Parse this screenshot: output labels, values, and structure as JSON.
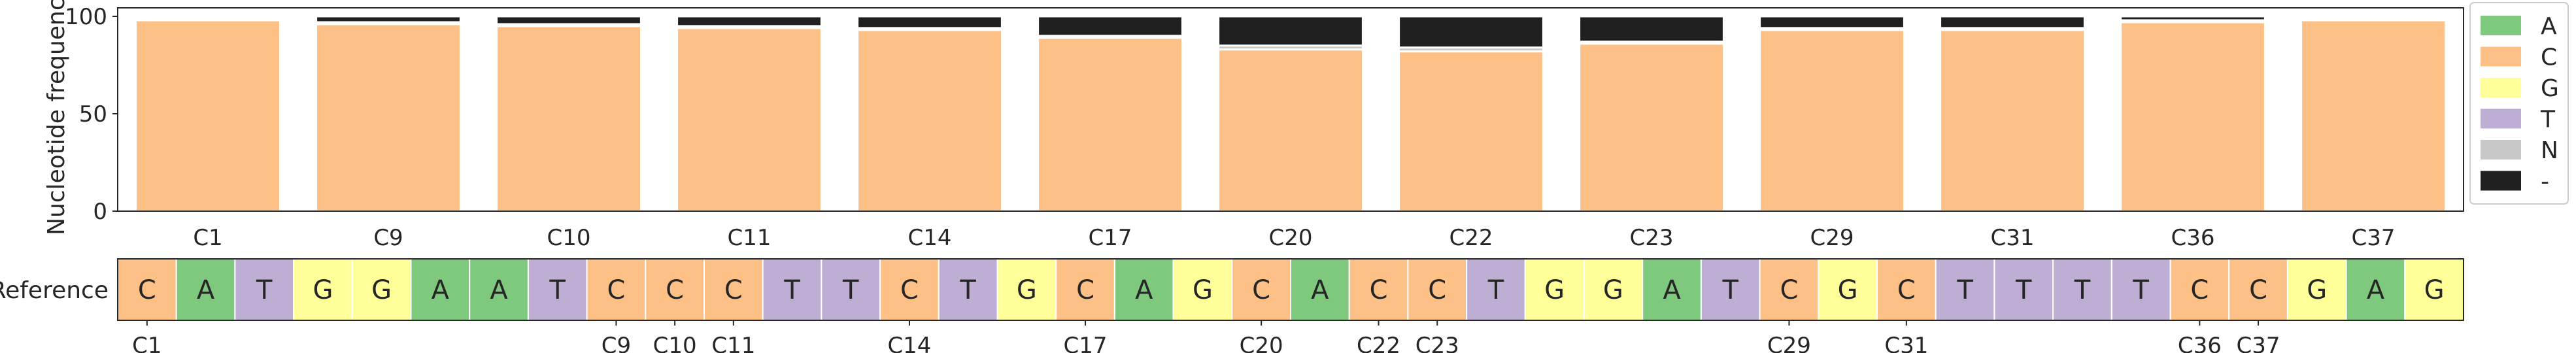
{
  "chart_data": {
    "type": "bar",
    "stacked": true,
    "ylabel": "Nucleotide frequency",
    "ylim": [
      0,
      100
    ],
    "yticks": [
      0,
      50,
      100
    ],
    "categories": [
      "C1",
      "C9",
      "C10",
      "C11",
      "C14",
      "C17",
      "C20",
      "C22",
      "C23",
      "C29",
      "C31",
      "C36",
      "C37"
    ],
    "series": [
      {
        "name": "A",
        "color": "#7fc97f",
        "values": [
          0,
          0,
          0,
          0,
          0,
          0,
          0,
          0,
          0,
          0,
          0,
          0,
          0
        ]
      },
      {
        "name": "C",
        "color": "#fdc086",
        "values": [
          98,
          96,
          95,
          94,
          93,
          89,
          83,
          82,
          86,
          93,
          93,
          97,
          98
        ]
      },
      {
        "name": "G",
        "color": "#ffff99",
        "values": [
          0,
          0,
          0,
          0,
          0,
          0,
          0,
          0,
          0,
          0,
          0,
          0,
          0
        ]
      },
      {
        "name": "T",
        "color": "#beaed4",
        "values": [
          0,
          0,
          0,
          0,
          0,
          0,
          0,
          0,
          0,
          0,
          0,
          0,
          0
        ]
      },
      {
        "name": "N",
        "color": "#c8c8c8",
        "values": [
          1,
          1,
          1,
          1,
          1,
          1,
          2,
          2,
          1,
          1,
          1,
          1,
          1
        ]
      },
      {
        "name": "-",
        "color": "#202020",
        "values": [
          1,
          3,
          4,
          5,
          6,
          10,
          15,
          16,
          13,
          6,
          6,
          2,
          1
        ]
      }
    ],
    "legend": {
      "placement": "right",
      "entries": [
        "A",
        "C",
        "G",
        "T",
        "N",
        "-"
      ]
    },
    "grid": false
  },
  "reference": {
    "label": "Reference",
    "sequence": [
      "C",
      "A",
      "T",
      "G",
      "G",
      "A",
      "A",
      "T",
      "C",
      "C",
      "C",
      "T",
      "T",
      "C",
      "T",
      "G",
      "C",
      "A",
      "G",
      "C",
      "A",
      "C",
      "C",
      "T",
      "G",
      "G",
      "A",
      "T",
      "C",
      "G",
      "C",
      "T",
      "T",
      "T",
      "T",
      "C",
      "C",
      "G",
      "A",
      "G"
    ],
    "colors": {
      "A": "#7fc97f",
      "C": "#fdc086",
      "G": "#ffff99",
      "T": "#beaed4"
    },
    "marked_positions": [
      {
        "label": "C1",
        "index": 0
      },
      {
        "label": "C9",
        "index": 8
      },
      {
        "label": "C10",
        "index": 9
      },
      {
        "label": "C11",
        "index": 10
      },
      {
        "label": "C14",
        "index": 13
      },
      {
        "label": "C17",
        "index": 16
      },
      {
        "label": "C20",
        "index": 19
      },
      {
        "label": "C22",
        "index": 21
      },
      {
        "label": "C23",
        "index": 22
      },
      {
        "label": "C29",
        "index": 28
      },
      {
        "label": "C31",
        "index": 30
      },
      {
        "label": "C36",
        "index": 35
      },
      {
        "label": "C37",
        "index": 36
      }
    ]
  }
}
